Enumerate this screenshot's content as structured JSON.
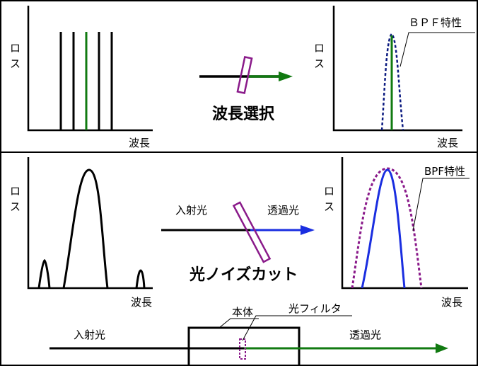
{
  "colors": {
    "black": "#000000",
    "green": "#117a11",
    "purple": "#8a1a8a",
    "navy": "#0b1a80",
    "blue": "#1a2ee0"
  },
  "top_panel": {
    "left_chart": {
      "ylabel_1": "ロ",
      "ylabel_2": "ス",
      "xlabel": "波長"
    },
    "center_label": "波長選択",
    "right_chart": {
      "ylabel_1": "ロ",
      "ylabel_2": "ス",
      "xlabel": "波長",
      "callout": "ＢＰＦ特性"
    }
  },
  "middle_panel": {
    "left_chart": {
      "ylabel_1": "ロ",
      "ylabel_2": "ス",
      "xlabel": "波長"
    },
    "input_label": "入射光",
    "output_label": "透過光",
    "center_label": "光ノイズカット",
    "right_chart": {
      "ylabel_1": "ロ",
      "ylabel_2": "ス",
      "xlabel": "波長",
      "callout": "BPF特性"
    }
  },
  "bottom_panel": {
    "input_label": "入射光",
    "output_label": "透過光",
    "body_label": "本体",
    "filter_label": "光フィルタ"
  }
}
